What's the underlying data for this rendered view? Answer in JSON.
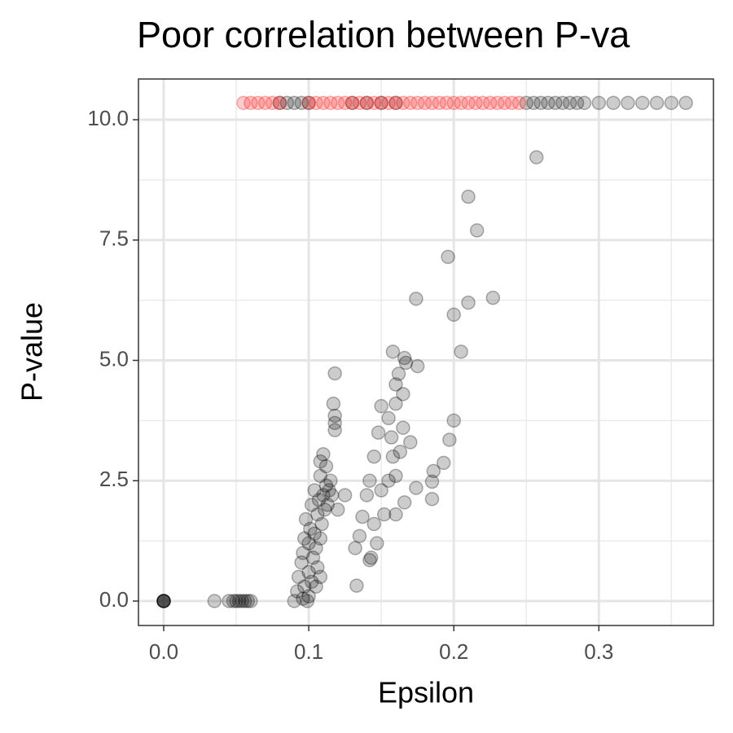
{
  "chart_data": {
    "type": "scatter",
    "title": "Poor correlation between P-va",
    "x_label": "Epsilon",
    "y_label": "P-value",
    "xlim": [
      -0.0174,
      0.379
    ],
    "ylim": [
      -0.508,
      10.846
    ],
    "xticks": [
      {
        "value": 0,
        "label": "0.0"
      },
      {
        "value": 0.1,
        "label": "0.1"
      },
      {
        "value": 0.2,
        "label": "0.2"
      },
      {
        "value": 0.3,
        "label": "0.3"
      }
    ],
    "yticks": [
      {
        "value": 0,
        "label": "0.0"
      },
      2.5,
      {
        "value": 5,
        "label": "5.0"
      },
      7.5,
      {
        "value": 10,
        "label": "10.0"
      }
    ],
    "x_minor_ticks": [
      0.05,
      0.15,
      0.25,
      0.35
    ],
    "y_minor_ticks": [
      1.25,
      3.75,
      6.25,
      8.75
    ],
    "grid": true,
    "alpha": 0.2,
    "series": [
      {
        "color": "#000000",
        "x": [
          0,
          0,
          0,
          0,
          0,
          0.035,
          0.045,
          0.048,
          0.05,
          0.052,
          0.054,
          0.056,
          0.058,
          0.06,
          0.09,
          0.092,
          0.093,
          0.095,
          0.096,
          0.097,
          0.098,
          0.1,
          0.1,
          0.1,
          0.101,
          0.102,
          0.102,
          0.103,
          0.104,
          0.104,
          0.105,
          0.106,
          0.106,
          0.107,
          0.108,
          0.108,
          0.109,
          0.11,
          0.111,
          0.112,
          0.113,
          0.114,
          0.116,
          0.097,
          0.099,
          0.105,
          0.108,
          0.096,
          0.257,
          0.21,
          0.216,
          0.196,
          0.174,
          0.227,
          0.21,
          0.2,
          0.205,
          0.158,
          0.166,
          0.167,
          0.175,
          0.162,
          0.16,
          0.118,
          0.117,
          0.118,
          0.118,
          0.118,
          0.2,
          0.197,
          0.193,
          0.186,
          0.185,
          0.185,
          0.174,
          0.166,
          0.133,
          0.132,
          0.135,
          0.137,
          0.14,
          0.142,
          0.145,
          0.148,
          0.15,
          0.155,
          0.157,
          0.158,
          0.16,
          0.145,
          0.147,
          0.143,
          0.142,
          0.152,
          0.15,
          0.155,
          0.16,
          0.163,
          0.165,
          0.17,
          0.16,
          0.165,
          0.125,
          0.12,
          0.115,
          0.112,
          0.11,
          0.108,
          0.08,
          0.085,
          0.09,
          0.095,
          0.1,
          0.13,
          0.14,
          0.15,
          0.16,
          0.25,
          0.255,
          0.26,
          0.265,
          0.27,
          0.275,
          0.28,
          0.285,
          0.29,
          0.3,
          0.31,
          0.32,
          0.33,
          0.34,
          0.35,
          0.36
        ],
        "values": [
          0,
          0,
          0,
          0,
          0,
          0,
          0,
          0,
          0,
          0,
          0,
          0,
          0,
          0,
          0,
          0.2,
          0.5,
          0.8,
          1,
          1.3,
          1.7,
          0.1,
          0.6,
          1.2,
          1.5,
          2,
          0.4,
          0.9,
          1.4,
          2.3,
          1.1,
          1.8,
          0.7,
          2.1,
          1.3,
          2.6,
          1.6,
          2.2,
          1.9,
          2.4,
          2,
          2.3,
          2.2,
          0.3,
          0,
          0.3,
          0.5,
          0.05,
          9.22,
          8.4,
          7.7,
          7.15,
          6.28,
          6.3,
          6.2,
          5.95,
          5.18,
          5.18,
          5.05,
          4.95,
          4.88,
          4.72,
          4.5,
          4.73,
          4.1,
          3.85,
          3.7,
          3.55,
          3.75,
          3.35,
          2.87,
          2.7,
          2.48,
          2.12,
          2.35,
          2.05,
          0.32,
          1.1,
          1.35,
          1.75,
          2.2,
          2.5,
          3,
          3.5,
          4.05,
          3.8,
          3.4,
          3,
          2.6,
          1.6,
          1.2,
          0.9,
          0.85,
          1.8,
          2.3,
          2.5,
          1.8,
          3.1,
          3.6,
          3.3,
          4.1,
          4.3,
          2.2,
          1.9,
          2.5,
          2.8,
          3.05,
          2.9,
          10.35,
          10.35,
          10.35,
          10.35,
          10.35,
          10.35,
          10.35,
          10.35,
          10.35,
          10.35,
          10.35,
          10.35,
          10.35,
          10.35,
          10.35,
          10.35,
          10.35,
          10.35,
          10.35,
          10.35,
          10.35,
          10.35,
          10.35,
          10.35,
          10.35
        ]
      },
      {
        "color": "#ff0000",
        "x": [
          0.055,
          0.06,
          0.065,
          0.07,
          0.075,
          0.08,
          0.1,
          0.105,
          0.11,
          0.115,
          0.12,
          0.125,
          0.13,
          0.135,
          0.14,
          0.145,
          0.15,
          0.155,
          0.16,
          0.165,
          0.17,
          0.175,
          0.18,
          0.185,
          0.19,
          0.195,
          0.2,
          0.205,
          0.21,
          0.215,
          0.22,
          0.225,
          0.23,
          0.235,
          0.24,
          0.245
        ],
        "values": [
          10.35,
          10.35,
          10.35,
          10.35,
          10.35,
          10.35,
          10.35,
          10.35,
          10.35,
          10.35,
          10.35,
          10.35,
          10.35,
          10.35,
          10.35,
          10.35,
          10.35,
          10.35,
          10.35,
          10.35,
          10.35,
          10.35,
          10.35,
          10.35,
          10.35,
          10.35,
          10.35,
          10.35,
          10.35,
          10.35,
          10.35,
          10.35,
          10.35,
          10.35,
          10.35,
          10.35
        ]
      }
    ]
  }
}
